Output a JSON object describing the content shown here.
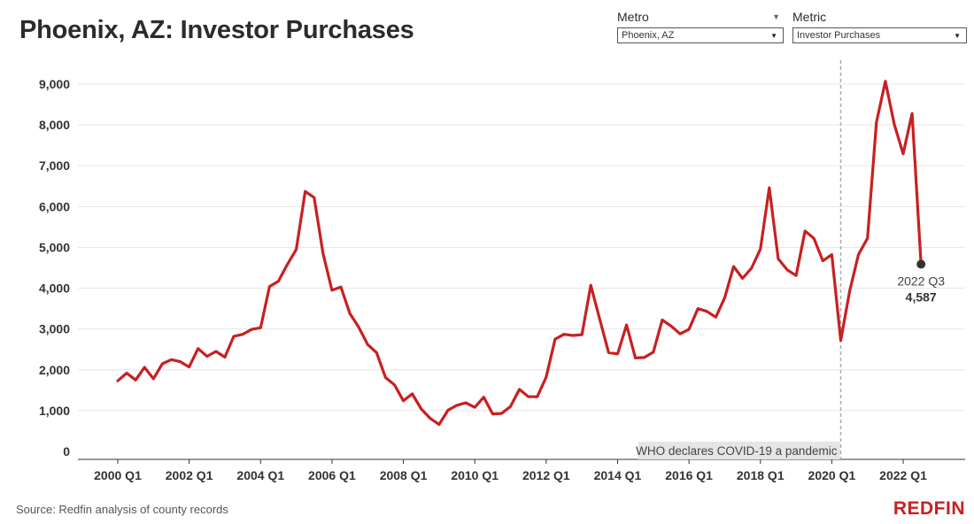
{
  "title": "Phoenix, AZ: Investor Purchases",
  "filters": {
    "metro": {
      "label": "Metro",
      "value": "Phoenix, AZ"
    },
    "metric": {
      "label": "Metric",
      "value": "Investor Purchases"
    }
  },
  "source": "Source: Redfin analysis of county records",
  "logo": "REDFIN",
  "colors": {
    "line": "#c82021",
    "grid": "#e6e6e6",
    "annotation_bg": "#e5e5e5",
    "point": "#333333"
  },
  "chart_data": {
    "type": "line",
    "title": "Phoenix, AZ: Investor Purchases",
    "xlabel": "",
    "ylabel": "",
    "ylim": [
      0,
      9500
    ],
    "yticks": [
      0,
      1000,
      2000,
      3000,
      4000,
      5000,
      6000,
      7000,
      8000,
      9000
    ],
    "ytick_labels": [
      "0",
      "1,000",
      "2,000",
      "3,000",
      "4,000",
      "5,000",
      "6,000",
      "7,000",
      "8,000",
      "9,000"
    ],
    "xtick_labels": [
      "2000 Q1",
      "2002 Q1",
      "2004 Q1",
      "2006 Q1",
      "2008 Q1",
      "2010 Q1",
      "2012 Q1",
      "2014 Q1",
      "2016 Q1",
      "2018 Q1",
      "2020 Q1",
      "2022 Q1"
    ],
    "grid": true,
    "series": [
      {
        "x": [
          "2000 Q1",
          "2000 Q2",
          "2000 Q3",
          "2000 Q4",
          "2001 Q1",
          "2001 Q2",
          "2001 Q3",
          "2001 Q4",
          "2002 Q1",
          "2002 Q2",
          "2002 Q3",
          "2002 Q4",
          "2003 Q1",
          "2003 Q2",
          "2003 Q3",
          "2003 Q4",
          "2004 Q1",
          "2004 Q2",
          "2004 Q3",
          "2004 Q4",
          "2005 Q1",
          "2005 Q2",
          "2005 Q3",
          "2005 Q4",
          "2006 Q1",
          "2006 Q2",
          "2006 Q3",
          "2006 Q4",
          "2007 Q1",
          "2007 Q2",
          "2007 Q3",
          "2007 Q4",
          "2008 Q1",
          "2008 Q2",
          "2008 Q3",
          "2008 Q4",
          "2009 Q1",
          "2009 Q2",
          "2009 Q3",
          "2009 Q4",
          "2010 Q1",
          "2010 Q2",
          "2010 Q3",
          "2010 Q4",
          "2011 Q1",
          "2011 Q2",
          "2011 Q3",
          "2011 Q4",
          "2012 Q1",
          "2012 Q2",
          "2012 Q3",
          "2012 Q4",
          "2013 Q1",
          "2013 Q2",
          "2013 Q3",
          "2013 Q4",
          "2014 Q1",
          "2014 Q2",
          "2014 Q3",
          "2014 Q4",
          "2015 Q1",
          "2015 Q2",
          "2015 Q3",
          "2015 Q4",
          "2016 Q1",
          "2016 Q2",
          "2016 Q3",
          "2016 Q4",
          "2017 Q1",
          "2017 Q2",
          "2017 Q3",
          "2017 Q4",
          "2018 Q1",
          "2018 Q2",
          "2018 Q3",
          "2018 Q4",
          "2019 Q1",
          "2019 Q2",
          "2019 Q3",
          "2019 Q4",
          "2020 Q1",
          "2020 Q2",
          "2020 Q3",
          "2020 Q4",
          "2021 Q1",
          "2021 Q2",
          "2021 Q3",
          "2021 Q4",
          "2022 Q1",
          "2022 Q2",
          "2022 Q3"
        ],
        "values": [
          1730,
          1920,
          1750,
          2060,
          1780,
          2150,
          2250,
          2200,
          2070,
          2520,
          2330,
          2450,
          2310,
          2820,
          2870,
          2990,
          3030,
          4040,
          4170,
          4580,
          4950,
          6370,
          6220,
          4850,
          3950,
          4030,
          3380,
          3040,
          2620,
          2420,
          1810,
          1630,
          1240,
          1410,
          1040,
          810,
          660,
          1010,
          1130,
          1190,
          1080,
          1330,
          920,
          930,
          1100,
          1520,
          1340,
          1340,
          1820,
          2750,
          2870,
          2840,
          2860,
          4070,
          3240,
          2420,
          2390,
          3100,
          2290,
          2300,
          2430,
          3220,
          3070,
          2880,
          2990,
          3500,
          3430,
          3290,
          3760,
          4530,
          4240,
          4490,
          4960,
          6460,
          4720,
          4450,
          4310,
          5400,
          5220,
          4670,
          4820,
          2720,
          3930,
          4830,
          5220,
          8060,
          9070,
          8010,
          7290,
          8280,
          4587
        ]
      }
    ],
    "annotations": [
      {
        "x": "2020 Q2",
        "type": "vertical-dashed-line",
        "label": "WHO declares COVID-19 a pandemic"
      },
      {
        "x": "2022 Q3",
        "type": "point-label",
        "label": "2022 Q3",
        "value_label": "4,587"
      }
    ]
  }
}
